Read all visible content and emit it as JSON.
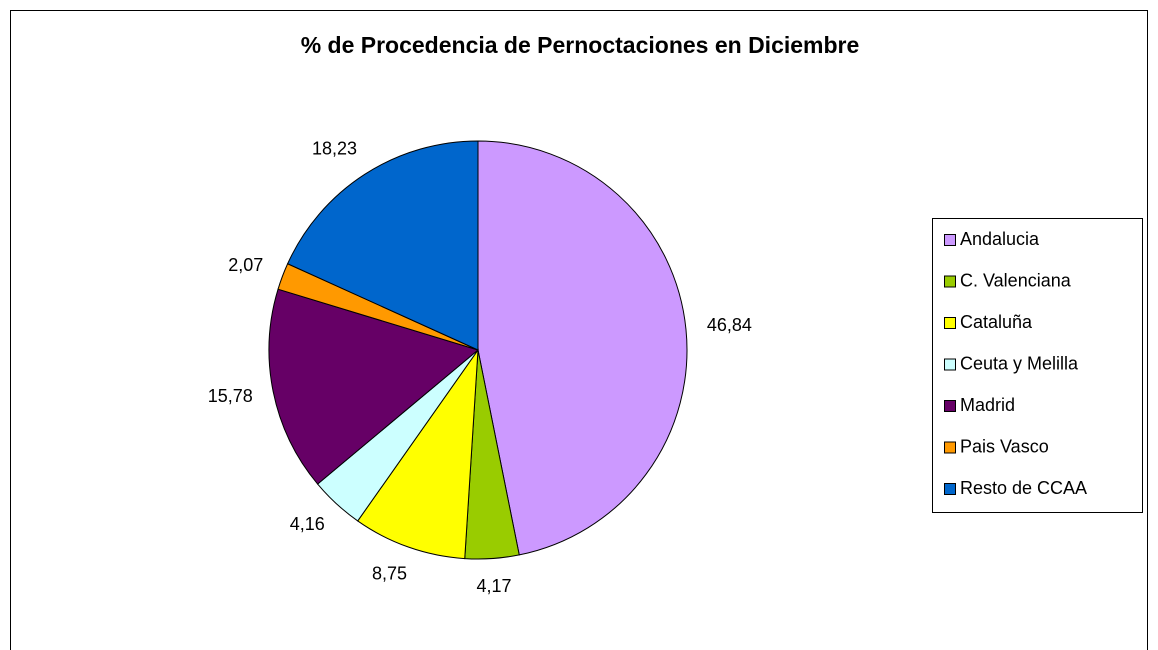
{
  "chart_data": {
    "type": "pie",
    "title": "% de Procedencia de Pernoctaciones en Diciembre",
    "categories": [
      "Andalucia",
      "C. Valenciana",
      "Cataluña",
      "Ceuta y Melilla",
      "Madrid",
      "Pais Vasco",
      "Resto de CCAA"
    ],
    "values": [
      46.84,
      4.17,
      8.75,
      4.16,
      15.78,
      2.07,
      18.23
    ],
    "value_labels": [
      "46,84",
      "4,17",
      "8,75",
      "4,16",
      "15,78",
      "2,07",
      "18,23"
    ],
    "colors": [
      "#cc99ff",
      "#99cc00",
      "#ffff00",
      "#ccffff",
      "#660066",
      "#ff9900",
      "#0066cc"
    ],
    "legend": "right"
  }
}
